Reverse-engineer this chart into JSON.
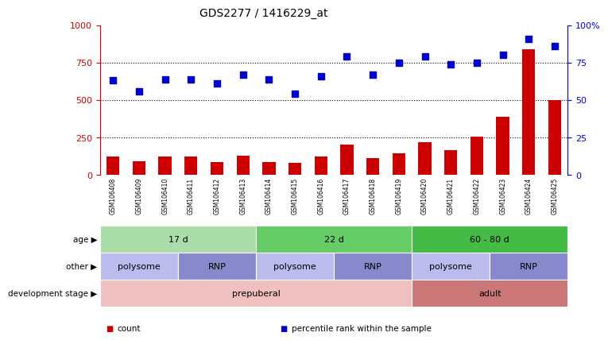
{
  "title": "GDS2277 / 1416229_at",
  "samples": [
    "GSM106408",
    "GSM106409",
    "GSM106410",
    "GSM106411",
    "GSM106412",
    "GSM106413",
    "GSM106414",
    "GSM106415",
    "GSM106416",
    "GSM106417",
    "GSM106418",
    "GSM106419",
    "GSM106420",
    "GSM106421",
    "GSM106422",
    "GSM106423",
    "GSM106424",
    "GSM106425"
  ],
  "bar_values": [
    120,
    90,
    120,
    120,
    85,
    130,
    85,
    80,
    120,
    200,
    110,
    145,
    220,
    165,
    255,
    390,
    840,
    500
  ],
  "dot_values": [
    63,
    56,
    64,
    64,
    61,
    67,
    64,
    54,
    66,
    79,
    67,
    75,
    79,
    74,
    75,
    80,
    91,
    86
  ],
  "bar_color": "#cc0000",
  "dot_color": "#0000cc",
  "ylim_left": [
    0,
    1000
  ],
  "ylim_right": [
    0,
    100
  ],
  "yticks_left": [
    0,
    250,
    500,
    750,
    1000
  ],
  "ytick_labels_left": [
    "0",
    "250",
    "500",
    "750",
    "1000"
  ],
  "yticks_right": [
    0,
    25,
    50,
    75,
    100
  ],
  "ytick_labels_right": [
    "0",
    "25",
    "50",
    "75",
    "100%"
  ],
  "grid_values": [
    250,
    500,
    750
  ],
  "age_groups": [
    {
      "label": "17 d",
      "start": 0,
      "end": 6,
      "color": "#aaddaa"
    },
    {
      "label": "22 d",
      "start": 6,
      "end": 12,
      "color": "#66cc66"
    },
    {
      "label": "60 - 80 d",
      "start": 12,
      "end": 18,
      "color": "#44bb44"
    }
  ],
  "other_groups": [
    {
      "label": "polysome",
      "start": 0,
      "end": 3,
      "color": "#bbbbee"
    },
    {
      "label": "RNP",
      "start": 3,
      "end": 6,
      "color": "#8888cc"
    },
    {
      "label": "polysome",
      "start": 6,
      "end": 9,
      "color": "#bbbbee"
    },
    {
      "label": "RNP",
      "start": 9,
      "end": 12,
      "color": "#8888cc"
    },
    {
      "label": "polysome",
      "start": 12,
      "end": 15,
      "color": "#bbbbee"
    },
    {
      "label": "RNP",
      "start": 15,
      "end": 18,
      "color": "#8888cc"
    }
  ],
  "dev_groups": [
    {
      "label": "prepuberal",
      "start": 0,
      "end": 12,
      "color": "#f0c0c0"
    },
    {
      "label": "adult",
      "start": 12,
      "end": 18,
      "color": "#cc7777"
    }
  ],
  "row_labels": [
    "age",
    "other",
    "development stage"
  ],
  "legend_items": [
    {
      "color": "#cc0000",
      "label": "count"
    },
    {
      "color": "#0000cc",
      "label": "percentile rank within the sample"
    }
  ],
  "background_color": "#ffffff",
  "axis_left_color": "#cc0000",
  "axis_right_color": "#0000cc",
  "xtick_bg_color": "#cccccc",
  "n_samples": 18
}
